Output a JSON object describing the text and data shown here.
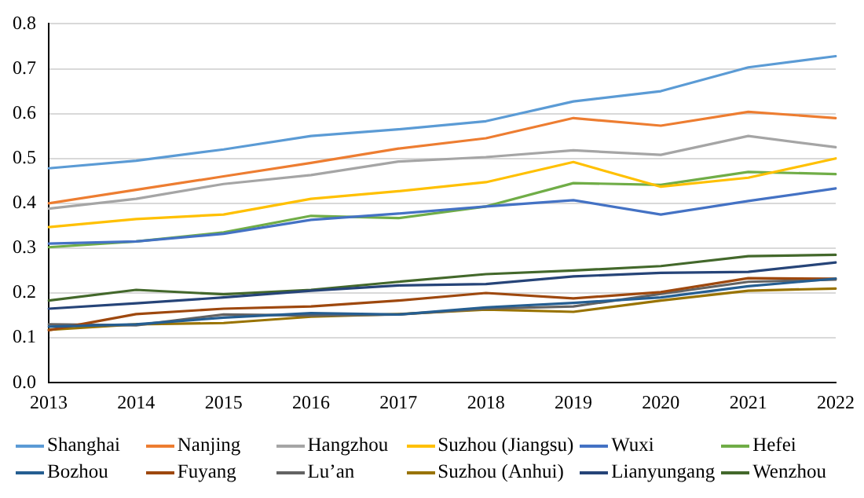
{
  "chart_data": {
    "type": "line",
    "categories": [
      "2013",
      "2014",
      "2015",
      "2016",
      "2017",
      "2018",
      "2019",
      "2020",
      "2021",
      "2022"
    ],
    "ylim": [
      0,
      0.8
    ],
    "yticks": [
      {
        "value": 0,
        "label": "0.0"
      },
      {
        "value": 0.1,
        "label": "0.1"
      },
      {
        "value": 0.2,
        "label": "0.2"
      },
      {
        "value": 0.3,
        "label": "0.3"
      },
      {
        "value": 0.4,
        "label": "0.4"
      },
      {
        "value": 0.5,
        "label": "0.5"
      },
      {
        "value": 0.6,
        "label": "0.6"
      },
      {
        "value": 0.7,
        "label": "0.7"
      },
      {
        "value": 0.8,
        "label": "0.8"
      }
    ],
    "grid": "y",
    "legend": "bottom",
    "marker": "none",
    "line_style": "solid",
    "series": [
      {
        "name": "Shanghai",
        "color": "#5b9bd5",
        "values": [
          0.478,
          0.495,
          0.52,
          0.55,
          0.565,
          0.583,
          0.627,
          0.65,
          0.703,
          0.728
        ]
      },
      {
        "name": "Nanjing",
        "color": "#ed7d31",
        "values": [
          0.4,
          0.43,
          0.46,
          0.49,
          0.522,
          0.545,
          0.59,
          0.573,
          0.604,
          0.59
        ]
      },
      {
        "name": "Hangzhou",
        "color": "#a5a5a5",
        "values": [
          0.388,
          0.41,
          0.443,
          0.463,
          0.493,
          0.503,
          0.518,
          0.508,
          0.55,
          0.525
        ]
      },
      {
        "name": "Suzhou (Jiangsu)",
        "color": "#ffc000",
        "values": [
          0.347,
          0.365,
          0.375,
          0.41,
          0.427,
          0.447,
          0.492,
          0.437,
          0.457,
          0.5
        ]
      },
      {
        "name": "Wuxi",
        "color": "#4472c4",
        "values": [
          0.31,
          0.315,
          0.332,
          0.363,
          0.377,
          0.393,
          0.407,
          0.375,
          0.405,
          0.433
        ]
      },
      {
        "name": "Hefei",
        "color": "#70ad47",
        "values": [
          0.302,
          0.315,
          0.335,
          0.372,
          0.367,
          0.393,
          0.445,
          0.441,
          0.47,
          0.465
        ]
      },
      {
        "name": "Bozhou",
        "color": "#255e91",
        "values": [
          0.125,
          0.13,
          0.145,
          0.155,
          0.152,
          0.168,
          0.178,
          0.19,
          0.215,
          0.232
        ]
      },
      {
        "name": "Fuyang",
        "color": "#9e480e",
        "values": [
          0.117,
          0.153,
          0.165,
          0.17,
          0.183,
          0.2,
          0.188,
          0.202,
          0.233,
          0.232
        ]
      },
      {
        "name": "Lu’an",
        "color": "#636363",
        "values": [
          0.13,
          0.128,
          0.152,
          0.15,
          0.152,
          0.165,
          0.17,
          0.198,
          0.225,
          0.23
        ]
      },
      {
        "name": "Suzhou (Anhui)",
        "color": "#997300",
        "values": [
          0.118,
          0.13,
          0.133,
          0.147,
          0.153,
          0.163,
          0.158,
          0.183,
          0.205,
          0.21
        ]
      },
      {
        "name": "Lianyungang",
        "color": "#264478",
        "values": [
          0.165,
          0.177,
          0.19,
          0.205,
          0.217,
          0.22,
          0.237,
          0.245,
          0.247,
          0.268
        ]
      },
      {
        "name": "Wenzhou",
        "color": "#43682b",
        "values": [
          0.183,
          0.207,
          0.197,
          0.207,
          0.225,
          0.242,
          0.25,
          0.26,
          0.282,
          0.285
        ]
      }
    ]
  }
}
